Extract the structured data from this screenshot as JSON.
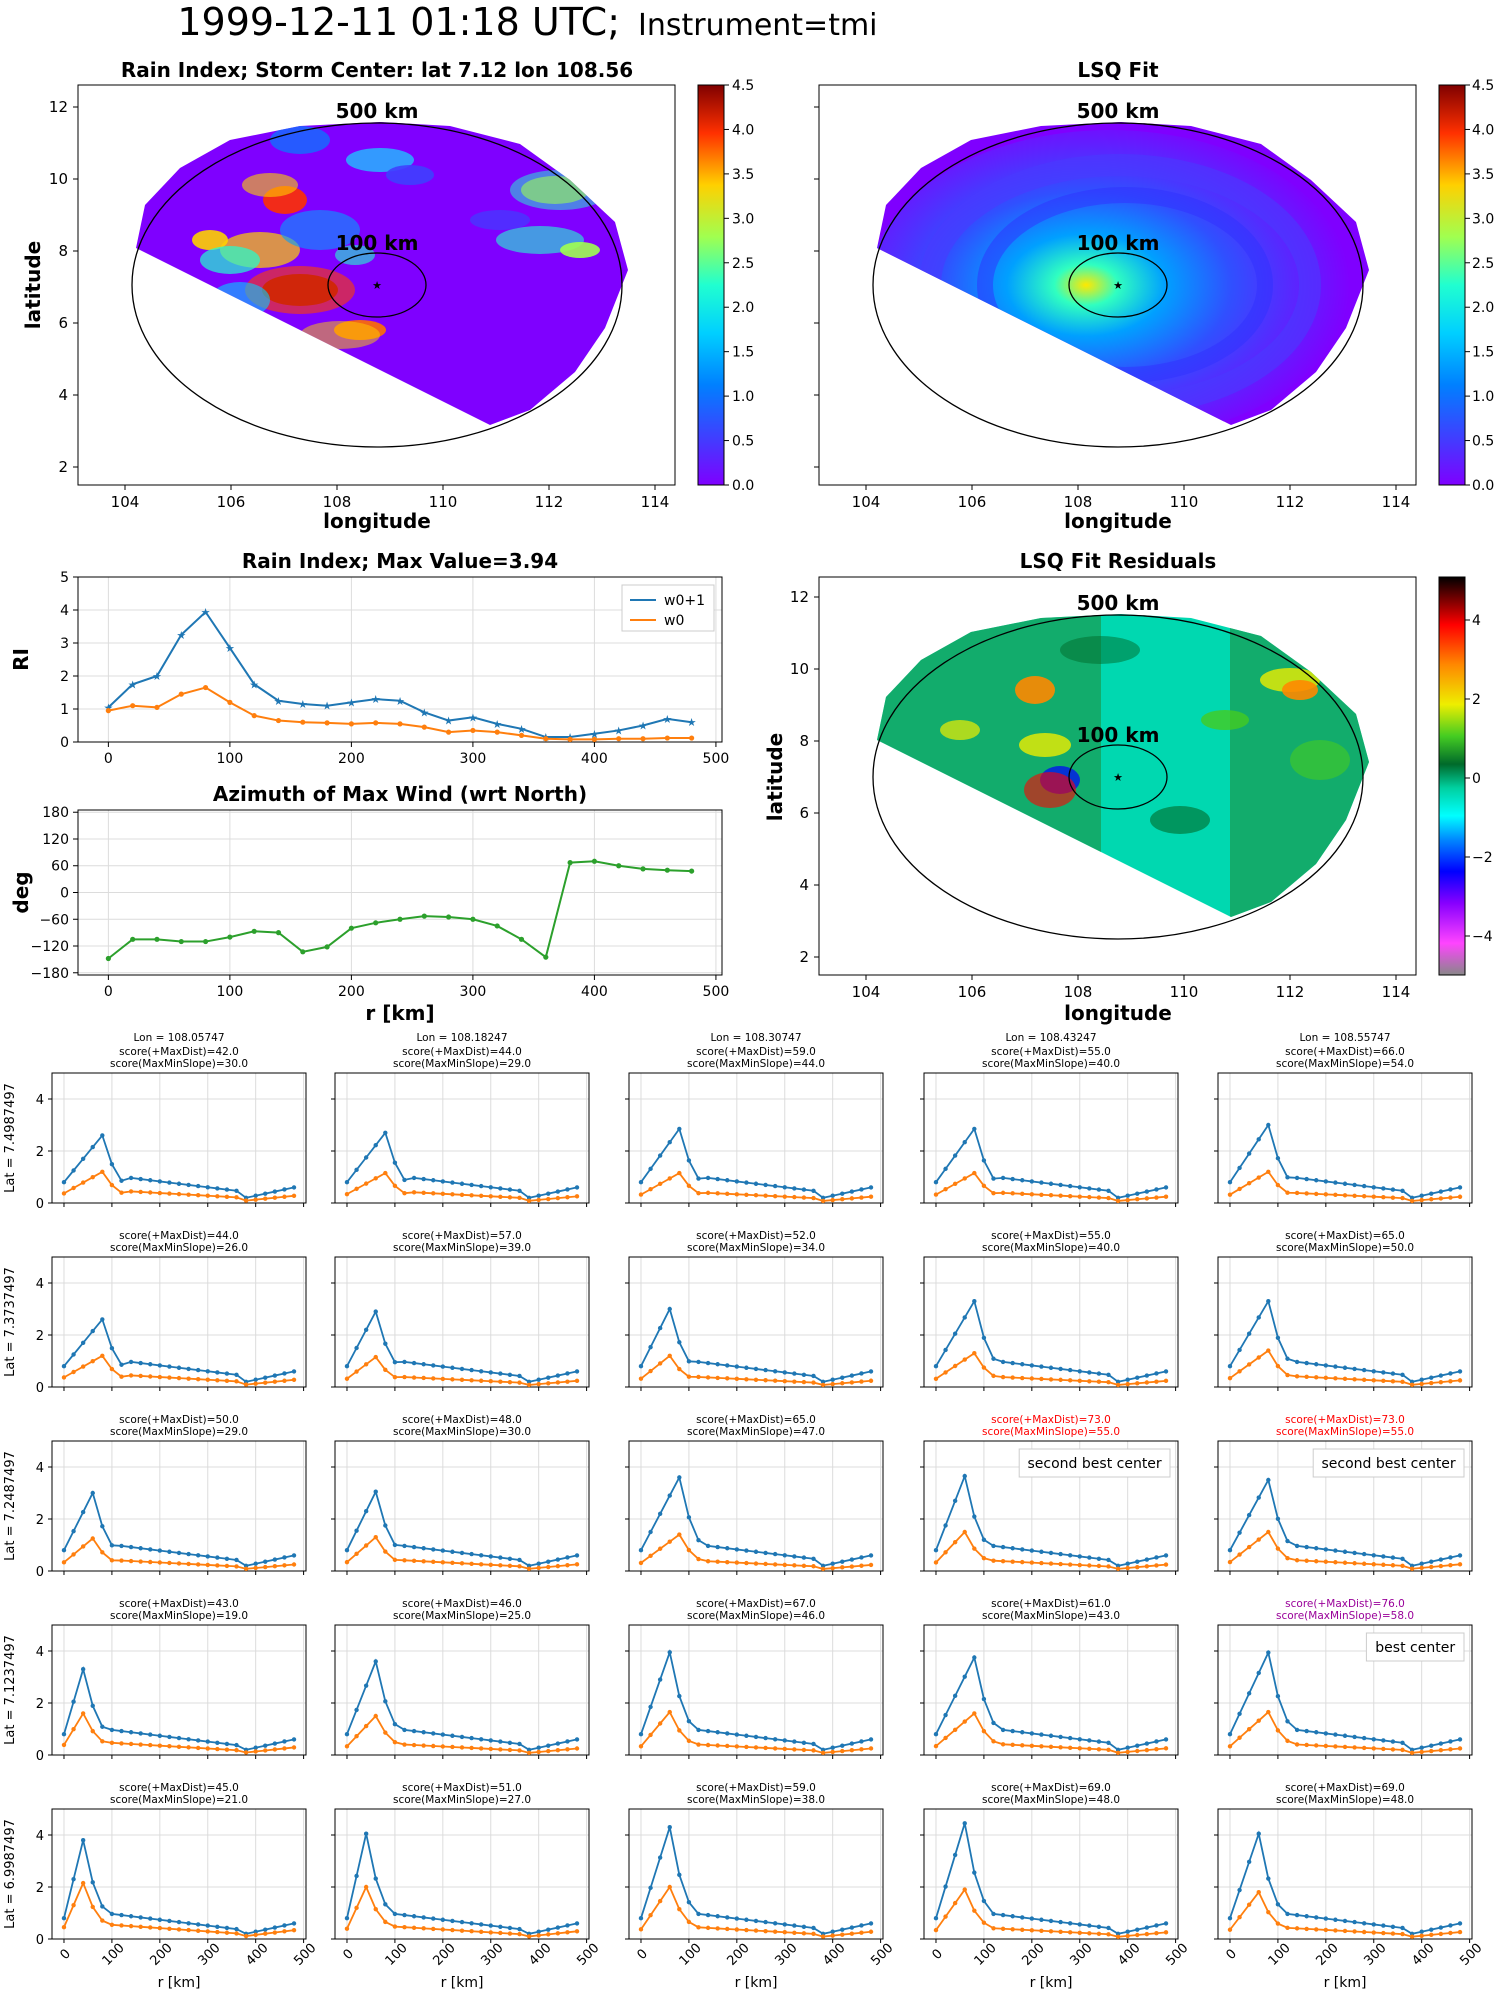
{
  "figure": {
    "title_main": "1999-12-11 01:18 UTC;",
    "title_instrument": "Instrument=tmi"
  },
  "maps": {
    "rain_index": {
      "title": "Rain Index; Storm Center: lat 7.12 lon 108.56",
      "xlabel": "longitude",
      "ylabel": "latitude",
      "label_500": "500 km",
      "label_100": "100 km",
      "x_ticks": [
        "104",
        "106",
        "108",
        "110",
        "112",
        "114"
      ],
      "y_ticks": [
        "2",
        "4",
        "6",
        "8",
        "10",
        "12"
      ],
      "colorbar_ticks": [
        "0.0",
        "0.5",
        "1.0",
        "1.5",
        "2.0",
        "2.5",
        "3.0",
        "3.5",
        "4.0",
        "4.5"
      ]
    },
    "lsq_fit": {
      "title": "LSQ Fit",
      "xlabel": "longitude",
      "label_500": "500 km",
      "label_100": "100 km",
      "x_ticks": [
        "104",
        "106",
        "108",
        "110",
        "112",
        "114"
      ],
      "colorbar_ticks": [
        "0.0",
        "0.5",
        "1.0",
        "1.5",
        "2.0",
        "2.5",
        "3.0",
        "3.5",
        "4.0",
        "4.5"
      ]
    },
    "residuals": {
      "title": "LSQ Fit Residuals",
      "xlabel": "longitude",
      "ylabel": "latitude",
      "label_500": "500 km",
      "label_100": "100 km",
      "x_ticks": [
        "104",
        "106",
        "108",
        "110",
        "112",
        "114"
      ],
      "y_ticks": [
        "2",
        "4",
        "6",
        "8",
        "10",
        "12"
      ],
      "colorbar_ticks": [
        "−4",
        "−2",
        "0",
        "2",
        "4"
      ]
    },
    "colors": {
      "background": "#7f00ff",
      "colormap": "jet",
      "residual_colormap": "gist_ncar"
    }
  },
  "chart_data": [
    {
      "type": "line",
      "id": "rain_index_profile",
      "title": "Rain Index; Max Value=3.94",
      "ylabel": "RI",
      "xlim": [
        -25,
        505
      ],
      "ylim": [
        0,
        5
      ],
      "x_ticks": [
        "0",
        "100",
        "200",
        "300",
        "400",
        "500"
      ],
      "y_ticks": [
        "0",
        "1",
        "2",
        "3",
        "4",
        "5"
      ],
      "grid": true,
      "legend": "top-right",
      "x": [
        0,
        20,
        40,
        60,
        80,
        100,
        120,
        140,
        160,
        180,
        200,
        220,
        240,
        260,
        280,
        300,
        320,
        340,
        360,
        380,
        400,
        420,
        440,
        460,
        480
      ],
      "series": [
        {
          "name": "w0+1",
          "color": "#1f77b4",
          "marker": "star",
          "values": [
            1.05,
            1.75,
            2.0,
            3.25,
            3.94,
            2.85,
            1.75,
            1.25,
            1.15,
            1.1,
            1.2,
            1.3,
            1.25,
            0.9,
            0.65,
            0.75,
            0.55,
            0.4,
            0.15,
            0.15,
            0.25,
            0.35,
            0.5,
            0.7,
            0.6
          ]
        },
        {
          "name": "w0",
          "color": "#ff7f0e",
          "marker": "dot",
          "values": [
            0.95,
            1.1,
            1.05,
            1.45,
            1.65,
            1.2,
            0.8,
            0.65,
            0.6,
            0.58,
            0.55,
            0.58,
            0.55,
            0.45,
            0.3,
            0.35,
            0.3,
            0.2,
            0.1,
            0.08,
            0.08,
            0.1,
            0.1,
            0.12,
            0.12
          ]
        }
      ]
    },
    {
      "type": "line",
      "id": "azimuth_profile",
      "title": "Azimuth of Max Wind (wrt North)",
      "xlabel": "r [km]",
      "ylabel": "deg",
      "xlim": [
        -25,
        505
      ],
      "ylim": [
        -185,
        185
      ],
      "x_ticks": [
        "0",
        "100",
        "200",
        "300",
        "400",
        "500"
      ],
      "y_ticks": [
        "−180",
        "−120",
        "−60",
        "0",
        "60",
        "120",
        "180"
      ],
      "grid": true,
      "x": [
        0,
        20,
        40,
        60,
        80,
        100,
        120,
        140,
        160,
        180,
        200,
        220,
        240,
        260,
        280,
        300,
        320,
        340,
        360,
        380,
        400,
        420,
        440,
        460,
        480
      ],
      "series": [
        {
          "name": "",
          "color": "#2ca02c",
          "values": [
            -148,
            -105,
            -105,
            -110,
            -110,
            -100,
            -87,
            -90,
            -133,
            -122,
            -80,
            -68,
            -60,
            -53,
            -55,
            -60,
            -75,
            -105,
            -145,
            67,
            70,
            60,
            53,
            50,
            48
          ]
        }
      ]
    },
    {
      "type": "line",
      "id": "candidate_grid",
      "xlabel": "r [km]",
      "ylim": [
        0,
        5
      ],
      "x_ticks": [
        "0",
        "100",
        "200",
        "300",
        "400",
        "500"
      ],
      "y_ticks": [
        "0",
        "2",
        "4"
      ],
      "grid": true,
      "rows": [
        {
          "lat_label": "Lat = 7.4987497",
          "cells": [
            {
              "lon_line": "Lon = 108.05747",
              "score1": "score(+MaxDist)=42.0",
              "score2": "score(MaxMinSlope)=30.0",
              "peak": 2.6,
              "shoulder": 4,
              "w0peak": 1.2
            },
            {
              "lon_line": "Lon = 108.18247",
              "score1": "score(+MaxDist)=44.0",
              "score2": "score(MaxMinSlope)=29.0",
              "peak": 2.7,
              "shoulder": 4,
              "w0peak": 1.15
            },
            {
              "lon_line": "Lon = 108.30747",
              "score1": "score(+MaxDist)=59.0",
              "score2": "score(MaxMinSlope)=44.0",
              "peak": 2.85,
              "shoulder": 4,
              "w0peak": 1.15
            },
            {
              "lon_line": "Lon = 108.43247",
              "score1": "score(+MaxDist)=55.0",
              "score2": "score(MaxMinSlope)=40.0",
              "peak": 2.85,
              "shoulder": 4,
              "w0peak": 1.15
            },
            {
              "lon_line": "Lon = 108.55747",
              "score1": "score(+MaxDist)=66.0",
              "score2": "score(MaxMinSlope)=54.0",
              "peak": 3.0,
              "shoulder": 4,
              "w0peak": 1.2
            }
          ]
        },
        {
          "lat_label": "Lat = 7.3737497",
          "cells": [
            {
              "lon_line": "",
              "score1": "score(+MaxDist)=44.0",
              "score2": "score(MaxMinSlope)=26.0",
              "peak": 2.6,
              "shoulder": 4,
              "w0peak": 1.2
            },
            {
              "lon_line": "",
              "score1": "score(+MaxDist)=57.0",
              "score2": "score(MaxMinSlope)=39.0",
              "peak": 2.9,
              "shoulder": 3,
              "w0peak": 1.15
            },
            {
              "lon_line": "",
              "score1": "score(+MaxDist)=52.0",
              "score2": "score(MaxMinSlope)=34.0",
              "peak": 3.0,
              "shoulder": 3,
              "w0peak": 1.2
            },
            {
              "lon_line": "",
              "score1": "score(+MaxDist)=55.0",
              "score2": "score(MaxMinSlope)=40.0",
              "peak": 3.3,
              "shoulder": 4,
              "w0peak": 1.3
            },
            {
              "lon_line": "",
              "score1": "score(+MaxDist)=65.0",
              "score2": "score(MaxMinSlope)=50.0",
              "peak": 3.3,
              "shoulder": 4,
              "w0peak": 1.4
            }
          ]
        },
        {
          "lat_label": "Lat = 7.2487497",
          "cells": [
            {
              "lon_line": "",
              "score1": "score(+MaxDist)=50.0",
              "score2": "score(MaxMinSlope)=29.0",
              "peak": 3.0,
              "shoulder": 3,
              "w0peak": 1.25
            },
            {
              "lon_line": "",
              "score1": "score(+MaxDist)=48.0",
              "score2": "score(MaxMinSlope)=30.0",
              "peak": 3.05,
              "shoulder": 3,
              "w0peak": 1.3
            },
            {
              "lon_line": "",
              "score1": "score(+MaxDist)=65.0",
              "score2": "score(MaxMinSlope)=47.0",
              "peak": 3.6,
              "shoulder": 4,
              "w0peak": 1.4
            },
            {
              "lon_line": "",
              "score1": "score(+MaxDist)=73.0",
              "score2": "score(MaxMinSlope)=55.0",
              "peak": 3.65,
              "shoulder": 3,
              "w0peak": 1.5,
              "highlight": "#ff0000",
              "note": "second best center"
            },
            {
              "lon_line": "",
              "score1": "score(+MaxDist)=73.0",
              "score2": "score(MaxMinSlope)=55.0",
              "peak": 3.5,
              "shoulder": 4,
              "w0peak": 1.5,
              "highlight": "#ff0000",
              "note": "second best center"
            }
          ]
        },
        {
          "lat_label": "Lat = 7.1237497",
          "cells": [
            {
              "lon_line": "",
              "score1": "score(+MaxDist)=43.0",
              "score2": "score(MaxMinSlope)=19.0",
              "peak": 3.3,
              "shoulder": 2,
              "w0peak": 1.6
            },
            {
              "lon_line": "",
              "score1": "score(+MaxDist)=46.0",
              "score2": "score(MaxMinSlope)=25.0",
              "peak": 3.6,
              "shoulder": 3,
              "w0peak": 1.5
            },
            {
              "lon_line": "",
              "score1": "score(+MaxDist)=67.0",
              "score2": "score(MaxMinSlope)=46.0",
              "peak": 3.95,
              "shoulder": 3,
              "w0peak": 1.65
            },
            {
              "lon_line": "",
              "score1": "score(+MaxDist)=61.0",
              "score2": "score(MaxMinSlope)=43.0",
              "peak": 3.75,
              "shoulder": 4,
              "w0peak": 1.6
            },
            {
              "lon_line": "",
              "score1": "score(+MaxDist)=76.0",
              "score2": "score(MaxMinSlope)=58.0",
              "peak": 3.94,
              "shoulder": 4,
              "w0peak": 1.65,
              "highlight": "#990099",
              "note": "best center"
            }
          ]
        },
        {
          "lat_label": "Lat = 6.9987497",
          "cells": [
            {
              "lon_line": "",
              "score1": "score(+MaxDist)=45.0",
              "score2": "score(MaxMinSlope)=21.0",
              "peak": 3.8,
              "shoulder": 2,
              "w0peak": 2.15
            },
            {
              "lon_line": "",
              "score1": "score(+MaxDist)=51.0",
              "score2": "score(MaxMinSlope)=27.0",
              "peak": 4.05,
              "shoulder": 2,
              "w0peak": 2.0
            },
            {
              "lon_line": "",
              "score1": "score(+MaxDist)=59.0",
              "score2": "score(MaxMinSlope)=38.0",
              "peak": 4.3,
              "shoulder": 3,
              "w0peak": 2.0
            },
            {
              "lon_line": "",
              "score1": "score(+MaxDist)=69.0",
              "score2": "score(MaxMinSlope)=48.0",
              "peak": 4.45,
              "shoulder": 3,
              "w0peak": 1.9
            },
            {
              "lon_line": "",
              "score1": "score(+MaxDist)=69.0",
              "score2": "score(MaxMinSlope)=48.0",
              "peak": 4.05,
              "shoulder": 3,
              "w0peak": 1.8
            }
          ]
        }
      ]
    }
  ]
}
